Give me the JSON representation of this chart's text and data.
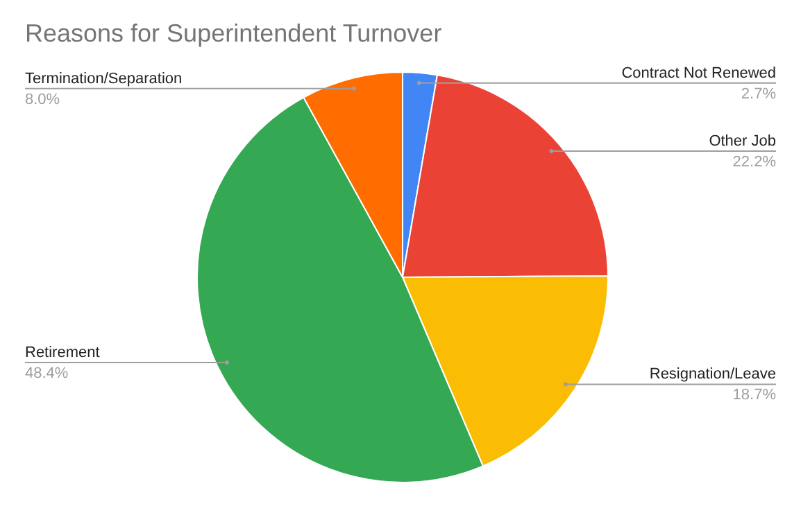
{
  "chart_data": {
    "type": "pie",
    "title": "Reasons for Superintendent Turnover",
    "categories": [
      "Contract Not Renewed",
      "Other Job",
      "Resignation/Leave",
      "Retirement",
      "Termination/Separation"
    ],
    "values": [
      2.7,
      22.2,
      18.7,
      48.4,
      8.0
    ],
    "colors": [
      "#4285f4",
      "#ea4335",
      "#fbbc04",
      "#34a853",
      "#ff6d01"
    ],
    "value_labels": [
      "2.7%",
      "22.2%",
      "18.7%",
      "48.4%",
      "8.0%"
    ]
  }
}
